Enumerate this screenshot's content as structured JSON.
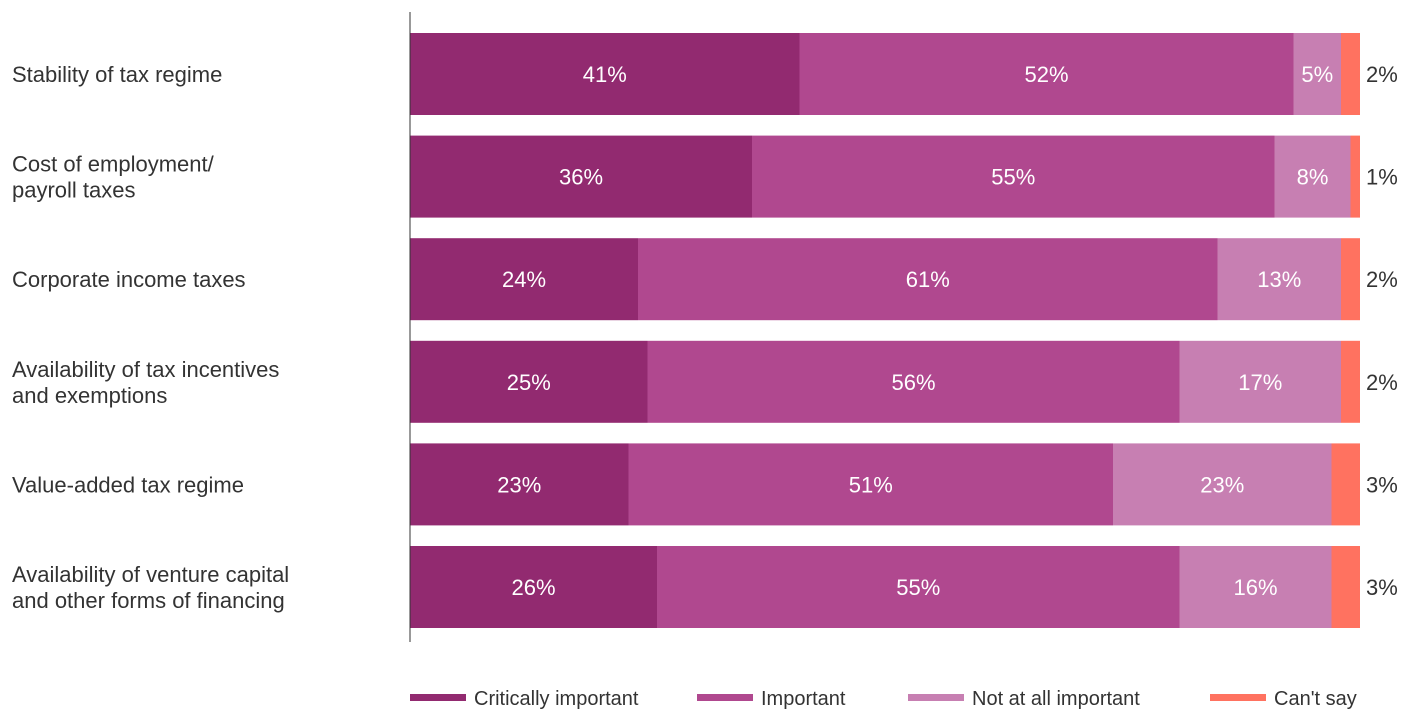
{
  "chart_data": {
    "type": "bar",
    "orientation": "horizontal",
    "stacked": true,
    "categories": [
      [
        "Stability of tax regime"
      ],
      [
        "Cost of employment/",
        "payroll taxes"
      ],
      [
        "Corporate income taxes"
      ],
      [
        "Availability of tax incentives",
        "and exemptions"
      ],
      [
        "Value-added tax regime"
      ],
      [
        "Availability of venture capital",
        "and other forms of financing"
      ]
    ],
    "series": [
      {
        "name": "Critically important",
        "color": "#922A70",
        "values": [
          41,
          36,
          24,
          25,
          23,
          26
        ]
      },
      {
        "name": "Important",
        "color": "#B0488F",
        "values": [
          52,
          55,
          61,
          56,
          51,
          55
        ]
      },
      {
        "name": "Not at all important",
        "color": "#C77FB2",
        "values": [
          5,
          8,
          13,
          17,
          23,
          16
        ]
      },
      {
        "name": "Can't say",
        "color": "#FF7260",
        "values": [
          2,
          1,
          2,
          2,
          3,
          3
        ]
      }
    ],
    "value_suffix": "%",
    "xlim": [
      0,
      100
    ],
    "legend_position": "bottom",
    "grid": false
  }
}
